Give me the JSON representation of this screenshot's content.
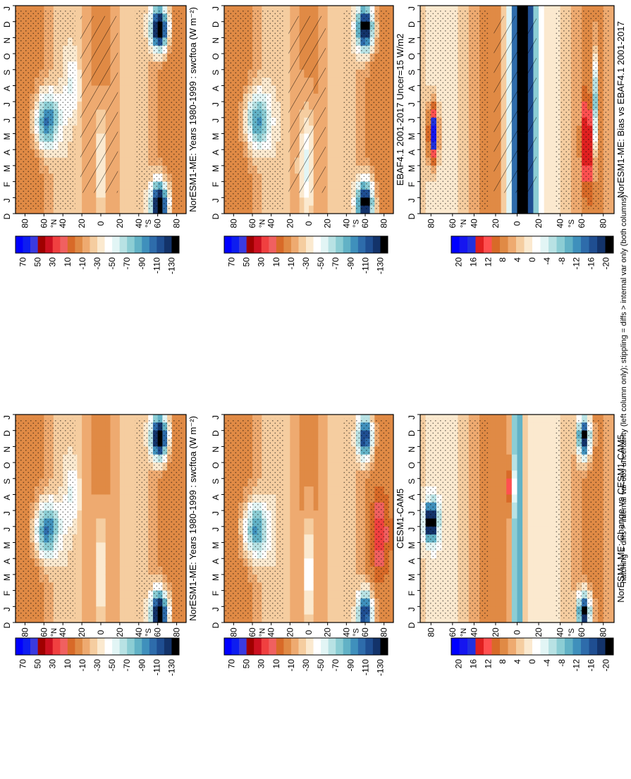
{
  "figure": {
    "footer_note": "hatching = diffs > internal var-obs uncertainty (left column only); stippling = diffs > internal var only (both columns)"
  },
  "chart_data": [
    {
      "id": "left-top",
      "type": "heatmap",
      "title": "NorESM1-ME: Years 1980-1999 : swcftoa (W m⁻²)",
      "variable": "swcftoa",
      "units": "W m-2",
      "xaxis": {
        "ticks": [
          "80",
          "60",
          "40",
          "20",
          "0",
          "20",
          "40",
          "60",
          "80"
        ],
        "hemisphere_labels": [
          "°N",
          "°S"
        ],
        "range": [
          90,
          -90
        ]
      },
      "yaxis": {
        "ticks": [
          "D",
          "J",
          "F",
          "M",
          "A",
          "M",
          "J",
          "J",
          "A",
          "S",
          "O",
          "N",
          "D",
          "J"
        ]
      },
      "colorbar": {
        "labels": [
          "70",
          "50",
          "30",
          "10",
          "-10",
          "-30",
          "-50",
          "-70",
          "-90",
          "-110",
          "-130"
        ]
      },
      "hatching": true,
      "stippling": true,
      "palette": "swcf",
      "features": [
        {
          "month": 0.6,
          "lat": -62,
          "amp": -150,
          "lat_w": 9,
          "mon_w": 1.4
        },
        {
          "month": 11.6,
          "lat": -62,
          "amp": -150,
          "lat_w": 9,
          "mon_w": 1.4
        },
        {
          "month": 5.8,
          "lat": 57,
          "amp": -90,
          "lat_w": 13,
          "mon_w": 1.8
        },
        {
          "month": 3.0,
          "lat": 0,
          "amp": -40,
          "lat_w": 7,
          "mon_w": 4
        },
        {
          "month": 8.0,
          "lat": 30,
          "amp": -25,
          "lat_w": 8,
          "mon_w": 2
        }
      ]
    },
    {
      "id": "left-mid",
      "type": "heatmap",
      "title": "EBAF4.1 2001-2017 Uncer=15 W/m2",
      "variable": "swcftoa",
      "units": "W m-2",
      "xaxis": {
        "ticks": [
          "80",
          "60",
          "40",
          "20",
          "0",
          "20",
          "40",
          "60",
          "80"
        ],
        "hemisphere_labels": [
          "°N",
          "°S"
        ],
        "range": [
          90,
          -90
        ]
      },
      "yaxis": {
        "ticks": [
          "D",
          "J",
          "F",
          "M",
          "A",
          "M",
          "J",
          "J",
          "A",
          "S",
          "O",
          "N",
          "D",
          "J"
        ]
      },
      "colorbar": {
        "labels": [
          "70",
          "50",
          "30",
          "10",
          "-10",
          "-30",
          "-50",
          "-70",
          "-90",
          "-110",
          "-130"
        ]
      },
      "hatching": true,
      "stippling": true,
      "palette": "swcf",
      "features": [
        {
          "month": 0.6,
          "lat": -60,
          "amp": -135,
          "lat_w": 9,
          "mon_w": 1.5
        },
        {
          "month": 11.6,
          "lat": -60,
          "amp": -135,
          "lat_w": 9,
          "mon_w": 1.5
        },
        {
          "month": 5.8,
          "lat": 55,
          "amp": -80,
          "lat_w": 13,
          "mon_w": 1.8
        },
        {
          "month": 3.0,
          "lat": 2,
          "amp": -50,
          "lat_w": 8,
          "mon_w": 4
        }
      ]
    },
    {
      "id": "left-bot",
      "type": "heatmap",
      "title": "NorESM1-ME: Bias vs EBAF4.1 2001-2017",
      "variable": "swcftoa bias",
      "units": "W m-2",
      "xaxis": {
        "ticks": [
          "80",
          "60",
          "40",
          "20",
          "0",
          "20",
          "40",
          "60",
          "80"
        ],
        "hemisphere_labels": [
          "°N",
          "°S"
        ],
        "range": [
          90,
          -90
        ]
      },
      "yaxis": {
        "ticks": [
          "D",
          "J",
          "F",
          "M",
          "A",
          "M",
          "J",
          "J",
          "A",
          "S",
          "O",
          "N",
          "D",
          "J"
        ]
      },
      "colorbar": {
        "labels": [
          "20",
          "16",
          "12",
          "8",
          "4",
          "0",
          "-4",
          "-8",
          "-12",
          "-16",
          "-20"
        ]
      },
      "hatching": true,
      "stippling": true,
      "palette": "diff",
      "features": [
        {
          "month": 6,
          "lat": -5,
          "amp": -30,
          "lat_w": 11,
          "mon_w": 20
        },
        {
          "month": 5,
          "lat": 78,
          "amp": 18,
          "lat_w": 5,
          "mon_w": 2
        },
        {
          "month": 4.5,
          "lat": -65,
          "amp": 12,
          "lat_w": 4,
          "mon_w": 3
        },
        {
          "month": 7,
          "lat": -72,
          "amp": -15,
          "lat_w": 3,
          "mon_w": 3
        }
      ]
    },
    {
      "id": "right-top",
      "type": "heatmap",
      "title": "NorESM1-ME: Years 1980-1999 : swcftoa (W m⁻²)",
      "variable": "swcftoa",
      "units": "W m-2",
      "xaxis": {
        "ticks": [
          "80",
          "60",
          "40",
          "20",
          "0",
          "20",
          "40",
          "60",
          "80"
        ],
        "hemisphere_labels": [
          "°N",
          "°S"
        ],
        "range": [
          90,
          -90
        ]
      },
      "yaxis": {
        "ticks": [
          "D",
          "J",
          "F",
          "M",
          "A",
          "M",
          "J",
          "J",
          "A",
          "S",
          "O",
          "N",
          "D",
          "J"
        ]
      },
      "colorbar": {
        "labels": [
          "70",
          "50",
          "30",
          "10",
          "-10",
          "-30",
          "-50",
          "-70",
          "-90",
          "-110",
          "-130"
        ]
      },
      "hatching": false,
      "stippling": true,
      "palette": "swcf",
      "features": [
        {
          "month": 0.6,
          "lat": -62,
          "amp": -150,
          "lat_w": 9,
          "mon_w": 1.4
        },
        {
          "month": 11.6,
          "lat": -62,
          "amp": -150,
          "lat_w": 9,
          "mon_w": 1.4
        },
        {
          "month": 5.8,
          "lat": 57,
          "amp": -90,
          "lat_w": 13,
          "mon_w": 1.8
        },
        {
          "month": 3.0,
          "lat": 0,
          "amp": -40,
          "lat_w": 7,
          "mon_w": 4
        },
        {
          "month": 8.0,
          "lat": 30,
          "amp": -25,
          "lat_w": 8,
          "mon_w": 2
        }
      ]
    },
    {
      "id": "right-mid",
      "type": "heatmap",
      "title": "CESM1-CAM5",
      "variable": "swcftoa",
      "units": "W m-2",
      "xaxis": {
        "ticks": [
          "80",
          "60",
          "40",
          "20",
          "0",
          "20",
          "40",
          "60",
          "80"
        ],
        "hemisphere_labels": [
          "°N",
          "°S"
        ],
        "range": [
          90,
          -90
        ]
      },
      "yaxis": {
        "ticks": [
          "D",
          "J",
          "F",
          "M",
          "A",
          "M",
          "J",
          "J",
          "A",
          "S",
          "O",
          "N",
          "D",
          "J"
        ]
      },
      "colorbar": {
        "labels": [
          "70",
          "50",
          "30",
          "10",
          "-10",
          "-30",
          "-50",
          "-70",
          "-90",
          "-110",
          "-130"
        ]
      },
      "hatching": false,
      "stippling": true,
      "palette": "swcf",
      "features": [
        {
          "month": 0.6,
          "lat": -60,
          "amp": -120,
          "lat_w": 8,
          "mon_w": 1.4
        },
        {
          "month": 11.6,
          "lat": -60,
          "amp": -120,
          "lat_w": 8,
          "mon_w": 1.4
        },
        {
          "month": 5.8,
          "lat": 57,
          "amp": -80,
          "lat_w": 13,
          "mon_w": 1.8
        },
        {
          "month": 3.0,
          "lat": 0,
          "amp": -45,
          "lat_w": 6,
          "mon_w": 4
        },
        {
          "month": 5.5,
          "lat": -75,
          "amp": 30,
          "lat_w": 8,
          "mon_w": 2
        }
      ]
    },
    {
      "id": "right-bot",
      "type": "heatmap",
      "title": "NorESM1-ME: Change vs CESM1-CAM5",
      "variable": "swcftoa difference",
      "units": "W m-2",
      "xaxis": {
        "ticks": [
          "80",
          "60",
          "40",
          "20",
          "0",
          "20",
          "40",
          "60",
          "80"
        ],
        "hemisphere_labels": [
          "°N",
          "°S"
        ],
        "range": [
          90,
          -90
        ]
      },
      "yaxis": {
        "ticks": [
          "D",
          "J",
          "F",
          "M",
          "A",
          "M",
          "J",
          "J",
          "A",
          "S",
          "O",
          "N",
          "D",
          "J"
        ]
      },
      "colorbar": {
        "labels": [
          "20",
          "16",
          "12",
          "8",
          "4",
          "0",
          "-4",
          "-8",
          "-12",
          "-16",
          "-20"
        ]
      },
      "hatching": false,
      "stippling": true,
      "palette": "diff",
      "features": [
        {
          "month": 6,
          "lat": 0,
          "amp": -25,
          "lat_w": 3,
          "mon_w": 20
        },
        {
          "month": 0.6,
          "lat": -62,
          "amp": -28,
          "lat_w": 6,
          "mon_w": 1.3
        },
        {
          "month": 11.6,
          "lat": -62,
          "amp": -28,
          "lat_w": 6,
          "mon_w": 1.3
        },
        {
          "month": 6.3,
          "lat": 80,
          "amp": -28,
          "lat_w": 6,
          "mon_w": 1.2
        },
        {
          "month": 8.5,
          "lat": 5,
          "amp": 12,
          "lat_w": 3,
          "mon_w": 1.5
        }
      ]
    }
  ]
}
